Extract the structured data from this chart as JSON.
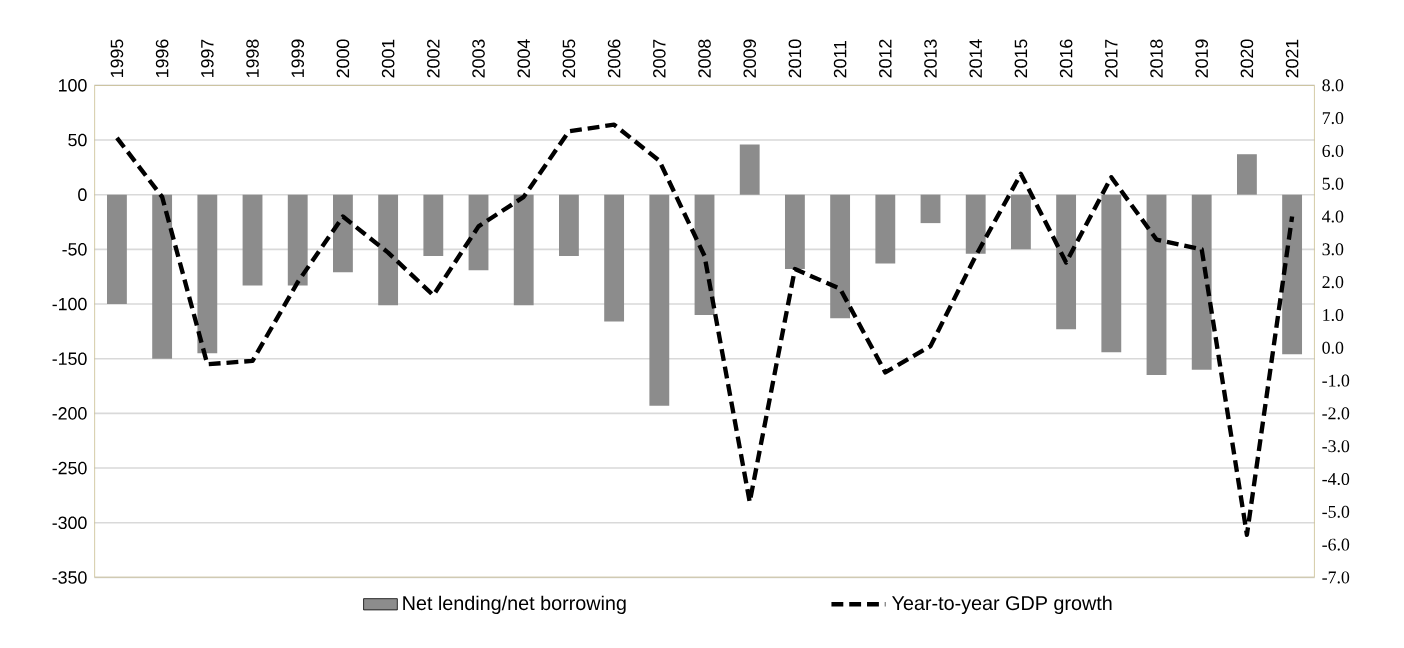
{
  "chart_data": {
    "type": "bar",
    "categories": [
      "1995",
      "1996",
      "1997",
      "1998",
      "1999",
      "2000",
      "2001",
      "2002",
      "2003",
      "2004",
      "2005",
      "2006",
      "2007",
      "2008",
      "2009",
      "2010",
      "2011",
      "2012",
      "2013",
      "2014",
      "2015",
      "2016",
      "2017",
      "2018",
      "2019",
      "2020",
      "2021"
    ],
    "series": [
      {
        "name": "Net lending/net borrowing",
        "type": "bar",
        "color": "#8c8c8c",
        "values": [
          -100,
          -150,
          -145,
          -83,
          -83,
          -71,
          -101,
          -56,
          -69,
          -101,
          -56,
          -116,
          -193,
          -110,
          46,
          -68,
          -113,
          -63,
          -26,
          -54,
          -50,
          -123,
          -144,
          -165,
          -160,
          37,
          -146
        ]
      },
      {
        "name": "Year-to-year GDP growth",
        "type": "line",
        "axis": "y2",
        "color": "#000000",
        "line_style": "dashed",
        "values": [
          6.4,
          4.6,
          -0.5,
          -0.4,
          2.0,
          4.0,
          2.9,
          1.6,
          3.7,
          4.6,
          6.6,
          6.8,
          5.7,
          2.8,
          -4.7,
          2.4,
          1.8,
          -0.75,
          0.05,
          2.8,
          5.3,
          2.6,
          5.2,
          3.3,
          3.0,
          -5.7,
          4.0
        ]
      }
    ],
    "ylim": [
      -350,
      100
    ],
    "yticks": [
      -350,
      -300,
      -250,
      -200,
      -150,
      -100,
      -50,
      0,
      50,
      100
    ],
    "y2lim": [
      -7,
      8
    ],
    "y2ticks": [
      {
        "value": -7,
        "label": "-7.0"
      },
      {
        "value": -6,
        "label": "-6.0"
      },
      {
        "value": -5,
        "label": "-5.0"
      },
      {
        "value": -4,
        "label": "-4.0"
      },
      {
        "value": -3,
        "label": "-3.0"
      },
      {
        "value": -2,
        "label": "-2.0"
      },
      {
        "value": -1,
        "label": "-1.0"
      },
      {
        "value": 0,
        "label": "0.0"
      },
      {
        "value": 1,
        "label": "1.0"
      },
      {
        "value": 2,
        "label": "2.0"
      },
      {
        "value": 3,
        "label": "3.0"
      },
      {
        "value": 4,
        "label": "4.0"
      },
      {
        "value": 5,
        "label": "5.0"
      },
      {
        "value": 6,
        "label": "6.0"
      },
      {
        "value": 7,
        "label": "7.0"
      },
      {
        "value": 8,
        "label": "8.0"
      }
    ],
    "grid": "y",
    "legend": "bottom"
  }
}
